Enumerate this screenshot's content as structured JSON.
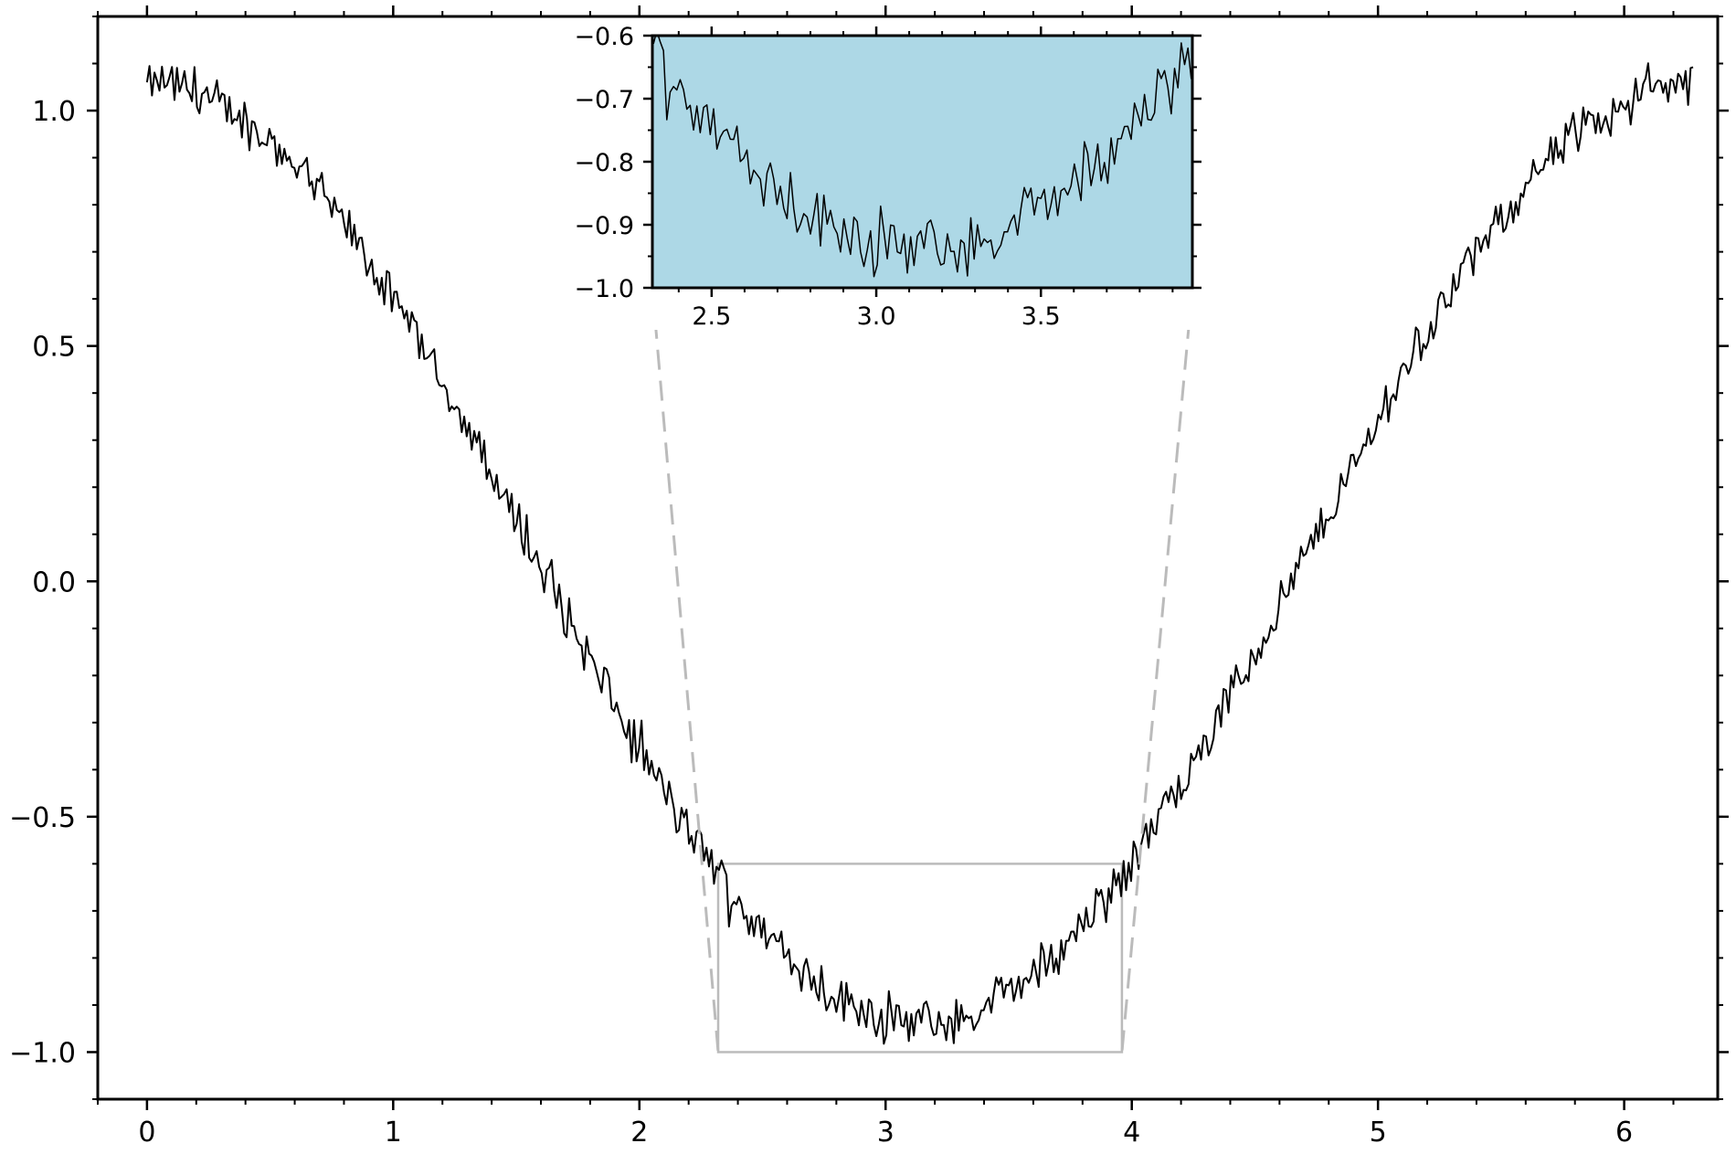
{
  "chart_data": [
    {
      "id": "main",
      "type": "line",
      "title": "",
      "xlabel": "",
      "ylabel": "",
      "xlim": [
        -0.2,
        6.38
      ],
      "ylim": [
        -1.1,
        1.2
      ],
      "x_ticks": [
        0,
        1,
        2,
        3,
        4,
        5,
        6
      ],
      "x_tick_labels": [
        "0",
        "1",
        "2",
        "3",
        "4",
        "5",
        "6"
      ],
      "x_minor_step": 0.2,
      "y_ticks": [
        -1.0,
        -0.5,
        0.0,
        0.5,
        1.0
      ],
      "y_tick_labels": [
        "−1.0",
        "−0.5",
        "0.0",
        "0.5",
        "1.0"
      ],
      "y_minor_step": 0.1,
      "grid": false,
      "series": [
        {
          "color": "#000000",
          "x_start": 0.0,
          "x_end": 6.28,
          "points": 620,
          "curve": "cos(x)",
          "noise_amplitude": 0.08,
          "anchors": [
            [
              0.0,
              1.07
            ],
            [
              0.5,
              0.91
            ],
            [
              1.0,
              0.57
            ],
            [
              1.5,
              0.08
            ],
            [
              2.0,
              -0.4
            ],
            [
              2.32,
              -0.6
            ],
            [
              3.0,
              -0.95
            ],
            [
              3.2,
              -0.99
            ],
            [
              3.5,
              -0.89
            ],
            [
              3.97,
              -0.62
            ],
            [
              4.5,
              -0.19
            ],
            [
              5.0,
              0.3
            ],
            [
              5.5,
              0.72
            ],
            [
              6.0,
              1.02
            ],
            [
              6.28,
              1.05
            ]
          ]
        }
      ],
      "zoom_box": {
        "x": [
          2.32,
          3.96
        ],
        "y": [
          -1.0,
          -0.6
        ],
        "color": "#bbbbbb"
      }
    },
    {
      "id": "inset",
      "type": "line",
      "title": "",
      "xlabel": "",
      "ylabel": "",
      "xlim": [
        2.32,
        3.96
      ],
      "ylim": [
        -1.0,
        -0.6
      ],
      "background": "#add8e6",
      "x_ticks": [
        2.5,
        3.0,
        3.5
      ],
      "x_tick_labels": [
        "2.5",
        "3.0",
        "3.5"
      ],
      "x_minor_step": 0.1,
      "y_ticks": [
        -1.0,
        -0.9,
        -0.8,
        -0.7,
        -0.6
      ],
      "y_tick_labels": [
        "−1.0",
        "−0.9",
        "−0.8",
        "−0.7",
        "−0.6"
      ],
      "y_minor_step": 0.05,
      "grid": false,
      "series": [
        {
          "color": "#000000",
          "source": "main.series.0"
        }
      ]
    }
  ]
}
